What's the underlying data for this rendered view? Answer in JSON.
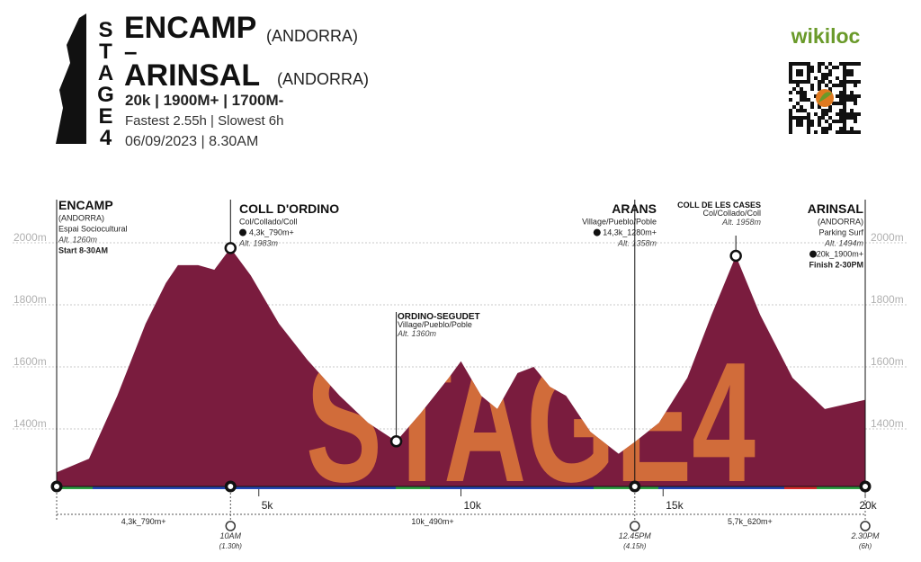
{
  "header": {
    "logo": "STAGE4",
    "title_from": "ENCAMP",
    "country_from": "(ANDORRA)",
    "dash": "–",
    "title_to": "ARINSAL",
    "country_to": "(ANDORRA)",
    "stats": "20k | 1900M+ | 1700M-",
    "times": "Fastest 2.55h | Slowest 6h",
    "date": "06/09/2023 | 8.30AM",
    "brand": "wikiloc"
  },
  "chart_data": {
    "type": "area",
    "watermark": "STAGE4",
    "color": "#7a1c3e",
    "x": [
      0,
      0.8,
      1.5,
      2.2,
      2.7,
      3.0,
      3.5,
      3.9,
      4.3,
      4.8,
      5.5,
      6.2,
      7.0,
      7.7,
      8.4,
      9.0,
      9.7,
      10.0,
      10.5,
      10.9,
      11.4,
      11.8,
      12.2,
      12.6,
      13.2,
      13.9,
      14.3,
      14.9,
      15.6,
      16.2,
      16.8,
      17.4,
      18.2,
      19.0,
      20
    ],
    "values": [
      1260,
      1304,
      1507,
      1739,
      1870,
      1928,
      1928,
      1913,
      1983,
      1895,
      1739,
      1623,
      1507,
      1420,
      1360,
      1450,
      1565,
      1618,
      1507,
      1464,
      1580,
      1600,
      1536,
      1507,
      1391,
      1320,
      1358,
      1420,
      1565,
      1768,
      1958,
      1768,
      1565,
      1464,
      1494
    ],
    "xlim": [
      0,
      20
    ],
    "ylim": [
      1200,
      2100
    ],
    "xticks": [
      {
        "value": 5,
        "label": "5k"
      },
      {
        "value": 10,
        "label": "10k"
      },
      {
        "value": 15,
        "label": "15k"
      },
      {
        "value": 20,
        "label": "20k"
      }
    ],
    "yticks": [
      {
        "value": 1400,
        "label": "1400m"
      },
      {
        "value": 1600,
        "label": "1600m"
      },
      {
        "value": 1800,
        "label": "1800m"
      },
      {
        "value": 2000,
        "label": "2000m"
      }
    ],
    "grid": true,
    "waypoints": [
      {
        "name": "ENCAMP",
        "x": 0,
        "lines": [
          "(ANDORRA)",
          "Espai Sociocultural",
          "Alt. 1260m",
          "Start 8-30AM"
        ]
      },
      {
        "name": "COLL D'ORDINO",
        "x": 4.3,
        "lines": [
          "Col/Collado/Coll",
          "4,3k_790m+",
          "Alt. 1983m"
        ],
        "time": "10AM",
        "elapsed": "(1.30h)"
      },
      {
        "name": "ORDINO-SEGUDET",
        "x": 8.4,
        "lines": [
          "Village/Pueblo/Poble",
          "Alt. 1360m"
        ]
      },
      {
        "name": "ARANS",
        "x": 14.3,
        "lines": [
          "Village/Pueblo/Poble",
          "14,3k_1280m+",
          "Alt. 1358m"
        ],
        "time": "12.45PM",
        "elapsed": "(4.15h)"
      },
      {
        "name": "COLL DE LES CASES",
        "x": 16.8,
        "lines": [
          "Col/Collado/Coll",
          "Alt. 1958m"
        ]
      },
      {
        "name": "ARINSAL",
        "x": 20,
        "lines": [
          "(ANDORRA)",
          "Parking Surf",
          "Alt. 1494m",
          "20k_1900m+",
          "Finish 2-30PM"
        ],
        "time": "2.30PM",
        "elapsed": "(6h)"
      }
    ],
    "segments": [
      "4,3k_790m+",
      "10k_490m+",
      "5,7k_620m+"
    ]
  }
}
